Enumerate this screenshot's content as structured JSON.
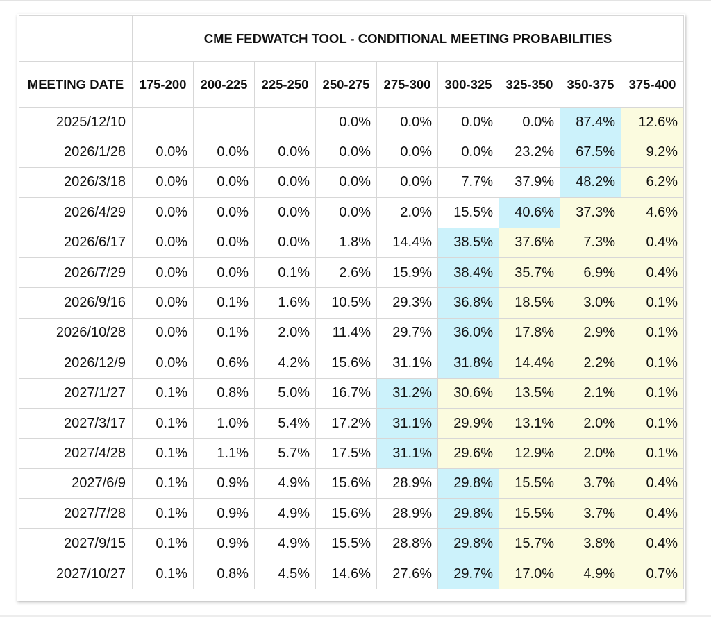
{
  "title": "CME FEDWATCH TOOL - CONDITIONAL MEETING PROBABILITIES",
  "columns": [
    "MEETING DATE",
    "175-200",
    "200-225",
    "225-250",
    "250-275",
    "275-300",
    "300-325",
    "325-350",
    "350-375",
    "375-400"
  ],
  "rows": [
    {
      "date": "2025/12/10",
      "values": [
        "",
        "",
        "",
        "0.0%",
        "0.0%",
        "0.0%",
        "0.0%",
        "87.4%",
        "12.6%"
      ],
      "max_index": 7
    },
    {
      "date": "2026/1/28",
      "values": [
        "0.0%",
        "0.0%",
        "0.0%",
        "0.0%",
        "0.0%",
        "0.0%",
        "23.2%",
        "67.5%",
        "9.2%"
      ],
      "max_index": 7
    },
    {
      "date": "2026/3/18",
      "values": [
        "0.0%",
        "0.0%",
        "0.0%",
        "0.0%",
        "0.0%",
        "7.7%",
        "37.9%",
        "48.2%",
        "6.2%"
      ],
      "max_index": 7
    },
    {
      "date": "2026/4/29",
      "values": [
        "0.0%",
        "0.0%",
        "0.0%",
        "0.0%",
        "2.0%",
        "15.5%",
        "40.6%",
        "37.3%",
        "4.6%"
      ],
      "max_index": 6
    },
    {
      "date": "2026/6/17",
      "values": [
        "0.0%",
        "0.0%",
        "0.0%",
        "1.8%",
        "14.4%",
        "38.5%",
        "37.6%",
        "7.3%",
        "0.4%"
      ],
      "max_index": 5
    },
    {
      "date": "2026/7/29",
      "values": [
        "0.0%",
        "0.0%",
        "0.1%",
        "2.6%",
        "15.9%",
        "38.4%",
        "35.7%",
        "6.9%",
        "0.4%"
      ],
      "max_index": 5
    },
    {
      "date": "2026/9/16",
      "values": [
        "0.0%",
        "0.1%",
        "1.6%",
        "10.5%",
        "29.3%",
        "36.8%",
        "18.5%",
        "3.0%",
        "0.1%"
      ],
      "max_index": 5
    },
    {
      "date": "2026/10/28",
      "values": [
        "0.0%",
        "0.1%",
        "2.0%",
        "11.4%",
        "29.7%",
        "36.0%",
        "17.8%",
        "2.9%",
        "0.1%"
      ],
      "max_index": 5
    },
    {
      "date": "2026/12/9",
      "values": [
        "0.0%",
        "0.6%",
        "4.2%",
        "15.6%",
        "31.1%",
        "31.8%",
        "14.4%",
        "2.2%",
        "0.1%"
      ],
      "max_index": 5
    },
    {
      "date": "2027/1/27",
      "values": [
        "0.1%",
        "0.8%",
        "5.0%",
        "16.7%",
        "31.2%",
        "30.6%",
        "13.5%",
        "2.1%",
        "0.1%"
      ],
      "max_index": 4
    },
    {
      "date": "2027/3/17",
      "values": [
        "0.1%",
        "1.0%",
        "5.4%",
        "17.2%",
        "31.1%",
        "29.9%",
        "13.1%",
        "2.0%",
        "0.1%"
      ],
      "max_index": 4
    },
    {
      "date": "2027/4/28",
      "values": [
        "0.1%",
        "1.1%",
        "5.7%",
        "17.5%",
        "31.1%",
        "29.6%",
        "12.9%",
        "2.0%",
        "0.1%"
      ],
      "max_index": 4
    },
    {
      "date": "2027/6/9",
      "values": [
        "0.1%",
        "0.9%",
        "4.9%",
        "15.6%",
        "28.9%",
        "29.8%",
        "15.5%",
        "3.7%",
        "0.4%"
      ],
      "max_index": 5
    },
    {
      "date": "2027/7/28",
      "values": [
        "0.1%",
        "0.9%",
        "4.9%",
        "15.6%",
        "28.9%",
        "29.8%",
        "15.5%",
        "3.7%",
        "0.4%"
      ],
      "max_index": 5
    },
    {
      "date": "2027/9/15",
      "values": [
        "0.1%",
        "0.9%",
        "4.9%",
        "15.5%",
        "28.8%",
        "29.8%",
        "15.7%",
        "3.8%",
        "0.4%"
      ],
      "max_index": 5
    },
    {
      "date": "2027/10/27",
      "values": [
        "0.1%",
        "0.8%",
        "4.5%",
        "14.6%",
        "27.6%",
        "29.7%",
        "17.0%",
        "4.9%",
        "0.7%"
      ],
      "max_index": 5
    }
  ],
  "colors": {
    "max_probability": "#ccf2fb",
    "above_max_range": "#fbfbdf",
    "grid": "#d7d7d7",
    "text": "#111111"
  }
}
